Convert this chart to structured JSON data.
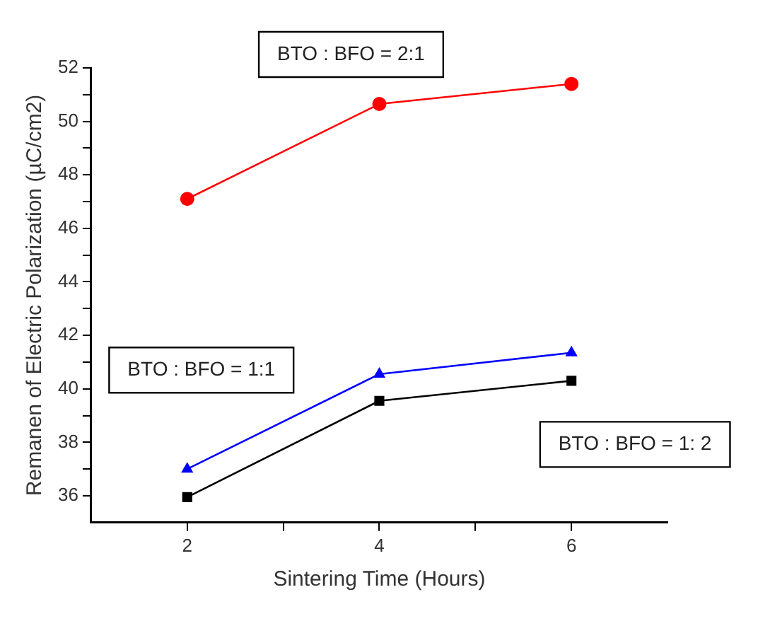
{
  "chart_data": {
    "type": "line",
    "xlabel": "Sintering Time (Hours)",
    "ylabel": "Remanen of Electric Polarization (µC/cm2)",
    "x": [
      2,
      4,
      6
    ],
    "series": [
      {
        "name": "BTO : BFO = 2:1",
        "color": "#ff0000",
        "marker": "circle",
        "values": [
          47.1,
          50.65,
          51.4
        ]
      },
      {
        "name": "BTO : BFO = 1:1",
        "color": "#0000ff",
        "marker": "triangle",
        "values": [
          37.0,
          40.55,
          41.35
        ]
      },
      {
        "name": "BTO : BFO = 1: 2",
        "color": "#000000",
        "marker": "square",
        "values": [
          35.95,
          39.55,
          40.3
        ]
      }
    ],
    "xlim": [
      1,
      7
    ],
    "xticks": [
      2,
      {
        "value": 3,
        "label": null
      },
      4,
      {
        "value": 5,
        "label": null
      },
      6
    ],
    "ylim": [
      35,
      52
    ],
    "yticks": [
      36,
      {
        "value": 37,
        "label": null
      },
      38,
      {
        "value": 39,
        "label": null
      },
      40,
      {
        "value": 41,
        "label": null
      },
      42,
      {
        "value": 43,
        "label": null
      },
      44,
      {
        "value": 45,
        "label": null
      },
      46,
      {
        "value": 47,
        "label": null
      },
      48,
      {
        "value": 49,
        "label": null
      },
      50,
      {
        "value": 51,
        "label": null
      },
      52
    ],
    "grid": false,
    "legend": false,
    "line_style": "solid"
  }
}
